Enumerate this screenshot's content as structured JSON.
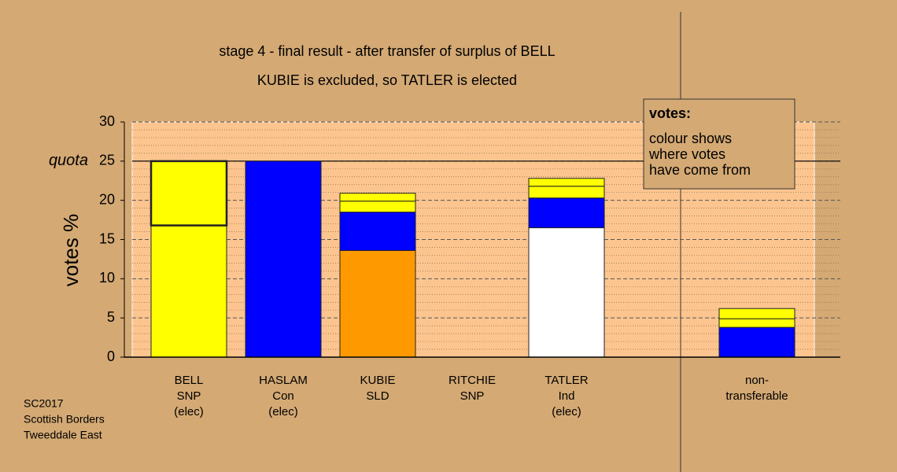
{
  "chart_data": {
    "type": "stacked-bar",
    "title": [
      "stage 4 - final result - after transfer of surplus of BELL",
      "KUBIE is excluded, so TATLER is elected"
    ],
    "ylabel": "votes %",
    "ylim": [
      0,
      30
    ],
    "yticks": [
      0,
      5,
      10,
      15,
      20,
      25,
      30
    ],
    "yminorticks": [
      1,
      2,
      3,
      4,
      6,
      7,
      8,
      9,
      11,
      12,
      13,
      14,
      16,
      17,
      18,
      19,
      21,
      22,
      23,
      24,
      26,
      27,
      28,
      29
    ],
    "quota": {
      "value": 25,
      "label": "quota"
    },
    "grid": true,
    "categories": [
      [
        "BELL",
        "SNP",
        "(elec)"
      ],
      [
        "HASLAM",
        "Con",
        "(elec)"
      ],
      [
        "KUBIE",
        "SLD"
      ],
      [
        "RITCHIE",
        "SNP"
      ],
      [
        "TATLER",
        "Ind",
        "(elec)"
      ],
      [
        "non-",
        "transferable"
      ]
    ],
    "segments": [
      [
        {
          "value": 16.8,
          "color": "#ffff00"
        },
        {
          "value": 8.2,
          "color": "#ffff00"
        }
      ],
      [
        {
          "value": 25,
          "color": "#0000ff"
        }
      ],
      [
        {
          "value": 13.6,
          "color": "#ff9900"
        },
        {
          "value": 4.9,
          "color": "#0000ff"
        },
        {
          "value": 1.4,
          "color": "#ffff00"
        },
        {
          "value": 1.0,
          "color": "#ffff00"
        }
      ],
      [],
      [
        {
          "value": 16.5,
          "color": "#ffffff"
        },
        {
          "value": 3.8,
          "color": "#0000ff"
        },
        {
          "value": 1.5,
          "color": "#ffff00"
        },
        {
          "value": 1.0,
          "color": "#ffff00"
        }
      ],
      [
        {
          "value": 3.8,
          "color": "#0000ff"
        },
        {
          "value": 1.1,
          "color": "#ffff00"
        },
        {
          "value": 1.3,
          "color": "#ffff00"
        }
      ]
    ],
    "note": {
      "title": "votes:",
      "lines": [
        "colour shows",
        "where votes",
        "have come from"
      ]
    },
    "footer": [
      "SC2017",
      "Scottish Borders",
      "Tweeddale East"
    ]
  }
}
